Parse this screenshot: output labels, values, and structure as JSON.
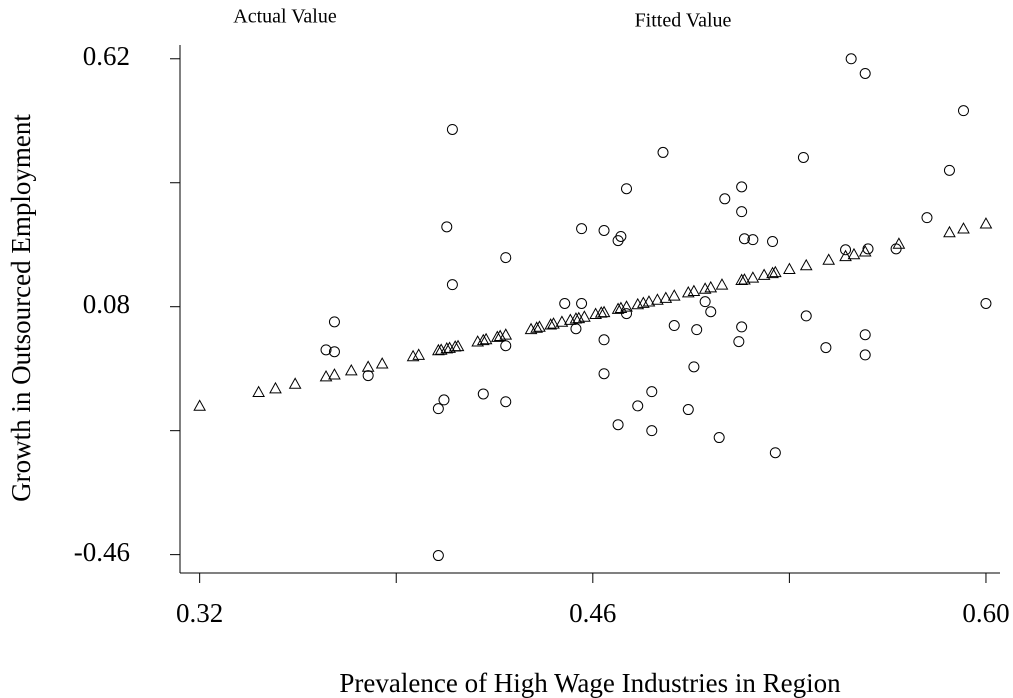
{
  "chart_data": {
    "type": "scatter",
    "x_label": "Prevalence of High Wage Industries in Region",
    "y_label": "Growth in Outsourced Employment",
    "xlim": [
      0.313,
      0.605
    ],
    "ylim": [
      -0.5,
      0.65
    ],
    "xticks": [
      0.32,
      0.46,
      {
        "value": 0.6,
        "label": "0.60"
      }
    ],
    "yticks": [
      0.62,
      0.08,
      -0.46
    ],
    "xminorticks": [
      0.39,
      0.53
    ],
    "yminorticks": [
      0.35,
      -0.19
    ],
    "grid": false,
    "series": [
      {
        "name": "Actual Value",
        "marker": "circle",
        "color": "#000000",
        "x": [
          0.552,
          0.557,
          0.592,
          0.41,
          0.485,
          0.535,
          0.587,
          0.472,
          0.513,
          0.507,
          0.513,
          0.579,
          0.408,
          0.456,
          0.464,
          0.47,
          0.469,
          0.514,
          0.517,
          0.524,
          0.429,
          0.55,
          0.558,
          0.568,
          0.41,
          0.368,
          0.45,
          0.456,
          0.5,
          0.6,
          0.536,
          0.472,
          0.502,
          0.489,
          0.454,
          0.497,
          0.513,
          0.557,
          0.464,
          0.512,
          0.365,
          0.368,
          0.429,
          0.543,
          0.557,
          0.496,
          0.464,
          0.38,
          0.421,
          0.481,
          0.407,
          0.405,
          0.429,
          0.476,
          0.494,
          0.469,
          0.481,
          0.505,
          0.525,
          0.405
        ],
        "y": [
          0.62,
          0.588,
          0.507,
          0.466,
          0.416,
          0.405,
          0.377,
          0.337,
          0.341,
          0.315,
          0.287,
          0.274,
          0.254,
          0.25,
          0.246,
          0.233,
          0.224,
          0.228,
          0.226,
          0.222,
          0.187,
          0.204,
          0.206,
          0.206,
          0.128,
          0.047,
          0.087,
          0.087,
          0.091,
          0.087,
          0.06,
          0.065,
          0.069,
          0.039,
          0.032,
          0.03,
          0.036,
          0.019,
          0.008,
          0.004,
          -0.014,
          -0.018,
          -0.005,
          -0.009,
          -0.025,
          -0.051,
          -0.066,
          -0.07,
          -0.11,
          -0.105,
          -0.123,
          -0.142,
          -0.127,
          -0.136,
          -0.144,
          -0.177,
          -0.19,
          -0.205,
          -0.238,
          -0.462
        ]
      },
      {
        "name": "Fitted Value",
        "marker": "triangle",
        "color": "#000000",
        "x": [
          0.32,
          0.341,
          0.347,
          0.354,
          0.365,
          0.368,
          0.374,
          0.38,
          0.385,
          0.396,
          0.398,
          0.405,
          0.406,
          0.408,
          0.409,
          0.411,
          0.412,
          0.419,
          0.421,
          0.422,
          0.426,
          0.427,
          0.429,
          0.438,
          0.44,
          0.441,
          0.445,
          0.446,
          0.449,
          0.452,
          0.454,
          0.455,
          0.457,
          0.461,
          0.463,
          0.464,
          0.469,
          0.47,
          0.472,
          0.476,
          0.478,
          0.48,
          0.483,
          0.486,
          0.489,
          0.494,
          0.496,
          0.5,
          0.502,
          0.506,
          0.513,
          0.514,
          0.517,
          0.521,
          0.524,
          0.525,
          0.53,
          0.536,
          0.544,
          0.55,
          0.553,
          0.557,
          0.569,
          0.587,
          0.592,
          0.6
        ],
        "y": [
          -0.136,
          -0.106,
          -0.098,
          -0.088,
          -0.072,
          -0.068,
          -0.059,
          -0.051,
          -0.044,
          -0.028,
          -0.025,
          -0.015,
          -0.014,
          -0.011,
          -0.01,
          -0.007,
          -0.006,
          0.004,
          0.007,
          0.009,
          0.014,
          0.016,
          0.019,
          0.031,
          0.034,
          0.036,
          0.041,
          0.043,
          0.047,
          0.051,
          0.054,
          0.055,
          0.058,
          0.064,
          0.067,
          0.068,
          0.075,
          0.077,
          0.08,
          0.085,
          0.088,
          0.091,
          0.095,
          0.099,
          0.104,
          0.111,
          0.114,
          0.119,
          0.122,
          0.128,
          0.138,
          0.139,
          0.143,
          0.149,
          0.153,
          0.155,
          0.162,
          0.17,
          0.182,
          0.19,
          0.194,
          0.2,
          0.217,
          0.242,
          0.25,
          0.261
        ]
      }
    ]
  }
}
